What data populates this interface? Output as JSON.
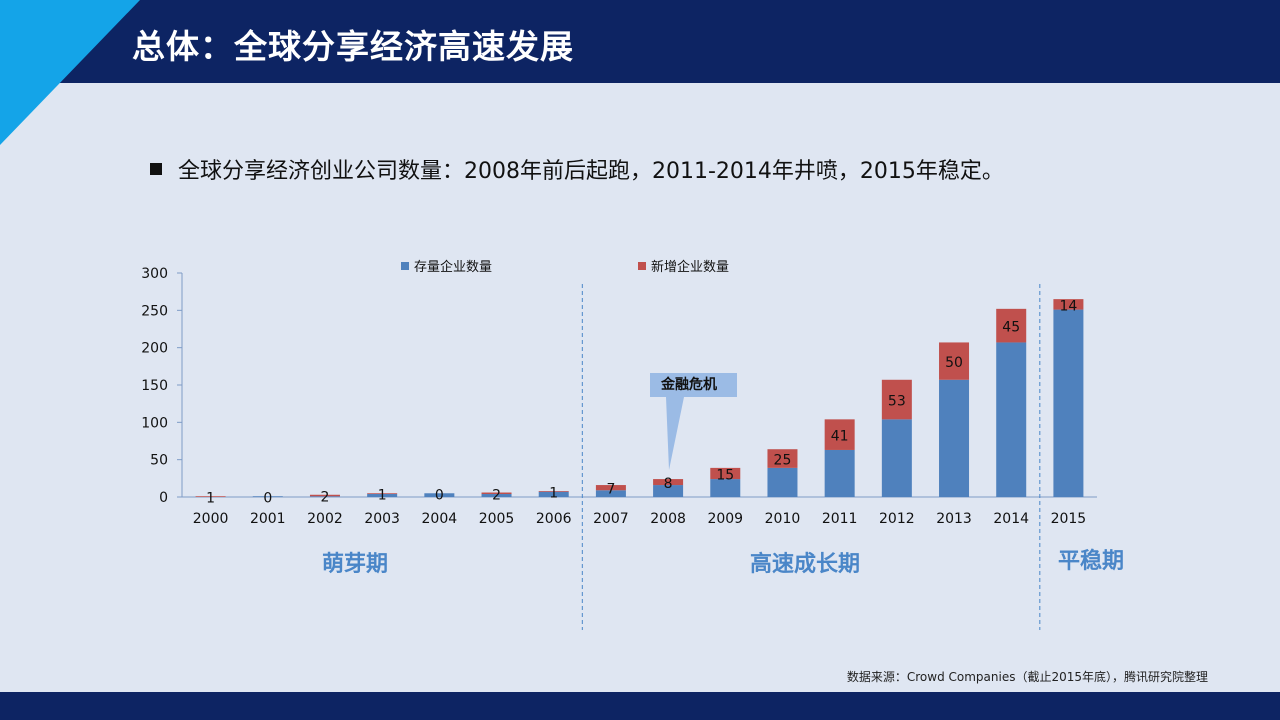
{
  "title": "总体：全球分享经济高速发展",
  "bullet": "全球分享经济创业公司数量：2008年前后起跑，2011-2014年井喷，2015年稳定。",
  "source": "数据来源：Crowd  Companies（截止2015年底），腾讯研究院整理",
  "phases": [
    "萌芽期",
    "高速成长期",
    "平稳期"
  ],
  "callout": "金融危机",
  "colors": {
    "header": "#0d2463",
    "accent": "#14a4e8",
    "stock": "#4f81bd",
    "new": "#c0504d",
    "phase": "#4a86c8"
  },
  "chart_data": {
    "type": "bar",
    "stacked": true,
    "categories": [
      "2000",
      "2001",
      "2002",
      "2003",
      "2004",
      "2005",
      "2006",
      "2007",
      "2008",
      "2009",
      "2010",
      "2011",
      "2012",
      "2013",
      "2014",
      "2015"
    ],
    "series": [
      {
        "name": "存量企业数量",
        "values": [
          0,
          1,
          1,
          4,
          5,
          4,
          7,
          9,
          16,
          24,
          39,
          63,
          104,
          157,
          207,
          251
        ]
      },
      {
        "name": "新增企业数量",
        "values": [
          1,
          0,
          2,
          1,
          0,
          2,
          1,
          7,
          8,
          15,
          25,
          41,
          53,
          50,
          45,
          14
        ]
      }
    ],
    "ylim": [
      0,
      300
    ],
    "yticks": [
      0,
      50,
      100,
      150,
      200,
      250,
      300
    ],
    "legend": "top"
  }
}
